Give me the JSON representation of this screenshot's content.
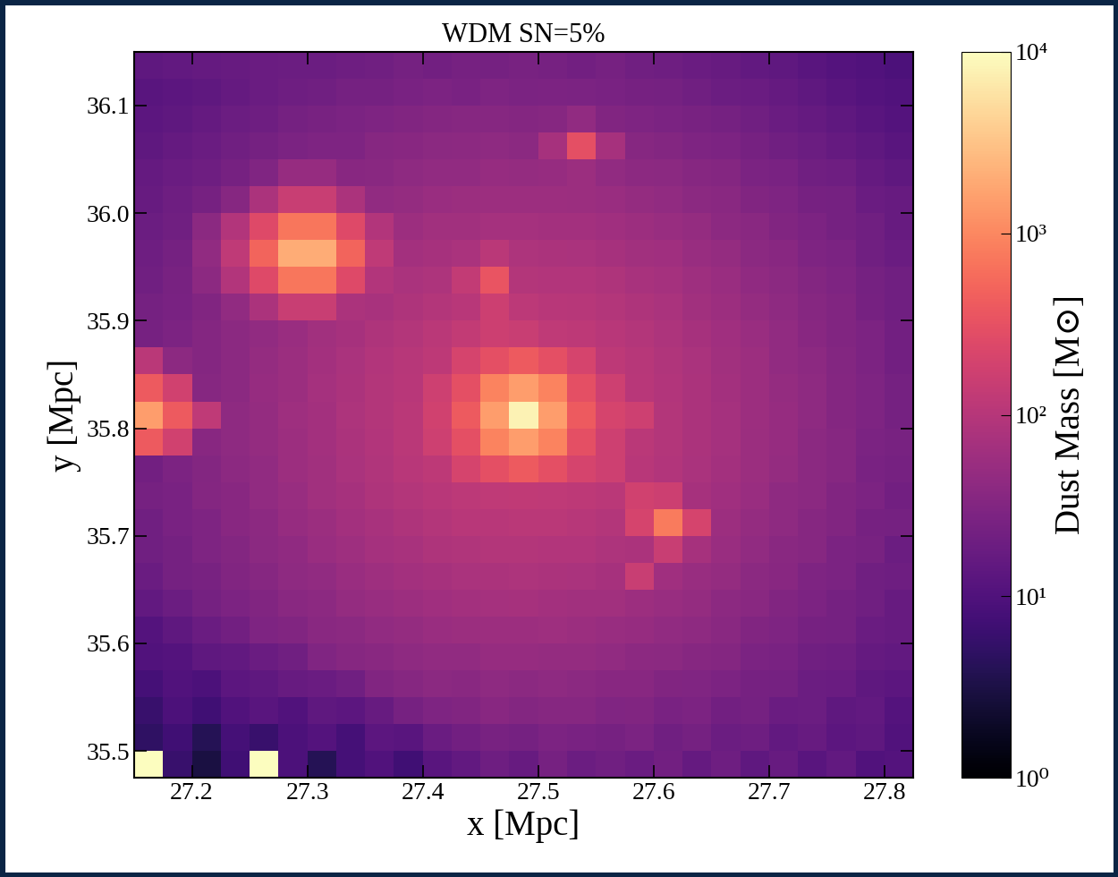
{
  "chart_data": {
    "type": "heatmap",
    "title": "WDM SN=5%",
    "x_label": "x [Mpc]",
    "y_label": "y [Mpc]",
    "xlim": [
      27.15,
      27.825
    ],
    "ylim": [
      35.475,
      36.15
    ],
    "xticks": [
      27.2,
      27.3,
      27.4,
      27.5,
      27.6,
      27.7,
      27.8
    ],
    "yticks": [
      35.5,
      35.6,
      35.7,
      35.8,
      35.9,
      36.0,
      36.1
    ],
    "x_edges": [
      27.15,
      27.175,
      27.2,
      27.225,
      27.25,
      27.275,
      27.3,
      27.325,
      27.35,
      27.375,
      27.4,
      27.425,
      27.45,
      27.475,
      27.5,
      27.525,
      27.55,
      27.575,
      27.6,
      27.625,
      27.65,
      27.675,
      27.7,
      27.725,
      27.75,
      27.775,
      27.8,
      27.825
    ],
    "y_edges": [
      35.475,
      35.5,
      35.525,
      35.55,
      35.575,
      35.6,
      35.625,
      35.65,
      35.675,
      35.7,
      35.725,
      35.75,
      35.775,
      35.8,
      35.825,
      35.85,
      35.875,
      35.9,
      35.925,
      35.95,
      35.975,
      36.0,
      36.025,
      36.05,
      36.075,
      36.1,
      36.125,
      36.15
    ],
    "cells": [
      [
        10000,
        6,
        3,
        7,
        10000,
        9,
        4,
        8,
        10,
        7,
        12,
        15,
        20,
        17,
        24,
        19,
        21,
        18,
        22,
        16,
        20,
        14,
        17,
        12,
        15,
        10,
        11
      ],
      [
        5,
        7,
        4,
        8,
        6,
        9,
        11,
        8,
        13,
        12,
        18,
        22,
        25,
        23,
        28,
        26,
        24,
        27,
        21,
        23,
        19,
        20,
        15,
        17,
        13,
        14,
        10
      ],
      [
        6,
        9,
        7,
        10,
        12,
        10,
        14,
        13,
        17,
        24,
        29,
        31,
        36,
        32,
        35,
        34,
        30,
        31,
        26,
        28,
        22,
        23,
        18,
        19,
        14,
        15,
        11
      ],
      [
        8,
        10,
        9,
        13,
        14,
        17,
        18,
        21,
        31,
        35,
        38,
        37,
        42,
        39,
        41,
        38,
        36,
        36,
        31,
        30,
        28,
        24,
        23,
        19,
        18,
        14,
        13
      ],
      [
        10,
        11,
        14,
        15,
        18,
        21,
        30,
        35,
        37,
        42,
        44,
        45,
        49,
        50,
        47,
        47,
        44,
        40,
        39,
        34,
        33,
        27,
        26,
        21,
        20,
        16,
        15
      ],
      [
        11,
        14,
        18,
        22,
        29,
        31,
        37,
        39,
        45,
        48,
        54,
        55,
        58,
        57,
        59,
        55,
        52,
        50,
        45,
        41,
        37,
        31,
        29,
        24,
        23,
        18,
        17
      ],
      [
        15,
        19,
        23,
        28,
        31,
        37,
        40,
        47,
        51,
        58,
        61,
        66,
        68,
        70,
        66,
        64,
        63,
        58,
        52,
        47,
        40,
        37,
        31,
        28,
        23,
        21,
        17
      ],
      [
        18,
        23,
        25,
        31,
        34,
        41,
        45,
        54,
        59,
        66,
        72,
        75,
        80,
        81,
        78,
        77,
        72,
        150,
        61,
        52,
        47,
        39,
        36,
        29,
        27,
        21,
        20
      ],
      [
        21,
        23,
        29,
        32,
        39,
        43,
        53,
        59,
        68,
        74,
        84,
        88,
        95,
        96,
        93,
        90,
        82,
        80,
        150,
        70,
        53,
        45,
        37,
        34,
        27,
        25,
        19
      ],
      [
        21,
        26,
        29,
        36,
        40,
        50,
        56,
        66,
        74,
        86,
        94,
        104,
        107,
        111,
        109,
        102,
        96,
        200,
        800,
        200,
        58,
        48,
        42,
        34,
        31,
        24,
        23
      ],
      [
        24,
        26,
        33,
        36,
        44,
        52,
        63,
        70,
        84,
        94,
        107,
        115,
        124,
        127,
        122,
        117,
        108,
        180,
        160,
        72,
        61,
        54,
        42,
        38,
        31,
        28,
        22
      ],
      [
        22,
        28,
        32,
        40,
        45,
        57,
        64,
        77,
        88,
        104,
        117,
        200,
        300,
        400,
        300,
        200,
        170,
        104,
        90,
        75,
        66,
        55,
        47,
        38,
        34,
        26,
        24
      ],
      [
        400,
        180,
        36,
        41,
        47,
        58,
        66,
        80,
        93,
        109,
        170,
        300,
        900,
        1500,
        900,
        300,
        170,
        110,
        95,
        78,
        68,
        56,
        49,
        39,
        35,
        27,
        25
      ],
      [
        1500,
        400,
        120,
        42,
        47,
        59,
        67,
        81,
        96,
        111,
        180,
        400,
        1500,
        8000,
        1500,
        400,
        200,
        170,
        96,
        79,
        69,
        57,
        49,
        41,
        33,
        29,
        23
      ],
      [
        400,
        180,
        35,
        39,
        49,
        56,
        68,
        78,
        95,
        107,
        170,
        300,
        900,
        1500,
        900,
        300,
        170,
        107,
        93,
        80,
        66,
        58,
        47,
        41,
        33,
        29,
        23
      ],
      [
        110,
        40,
        33,
        39,
        47,
        55,
        66,
        75,
        90,
        102,
        118,
        200,
        300,
        400,
        300,
        200,
        118,
        102,
        88,
        77,
        64,
        57,
        45,
        40,
        32,
        28,
        22
      ],
      [
        24,
        28,
        33,
        38,
        44,
        54,
        63,
        72,
        84,
        96,
        110,
        130,
        160,
        150,
        124,
        117,
        105,
        94,
        82,
        72,
        61,
        54,
        44,
        36,
        31,
        28,
        22
      ],
      [
        23,
        26,
        31,
        45,
        80,
        150,
        150,
        80,
        74,
        86,
        94,
        104,
        160,
        112,
        107,
        102,
        96,
        84,
        76,
        64,
        58,
        48,
        42,
        34,
        31,
        24,
        21
      ],
      [
        21,
        25,
        40,
        90,
        250,
        700,
        700,
        250,
        90,
        76,
        82,
        130,
        350,
        96,
        93,
        90,
        84,
        74,
        68,
        59,
        53,
        43,
        39,
        32,
        29,
        23,
        21
      ],
      [
        20,
        23,
        45,
        120,
        500,
        2000,
        2000,
        500,
        120,
        66,
        70,
        77,
        110,
        82,
        78,
        75,
        72,
        64,
        61,
        52,
        47,
        39,
        36,
        29,
        27,
        21,
        18
      ],
      [
        19,
        21,
        38,
        90,
        250,
        700,
        700,
        250,
        90,
        58,
        63,
        64,
        68,
        69,
        66,
        66,
        61,
        58,
        51,
        47,
        40,
        37,
        31,
        28,
        23,
        21,
        17
      ],
      [
        17,
        20,
        24,
        35,
        80,
        150,
        150,
        80,
        45,
        48,
        54,
        55,
        58,
        57,
        58,
        55,
        54,
        48,
        45,
        39,
        37,
        31,
        29,
        24,
        23,
        18,
        17
      ],
      [
        16,
        18,
        20,
        24,
        30,
        50,
        50,
        36,
        37,
        42,
        44,
        45,
        49,
        47,
        49,
        55,
        44,
        40,
        39,
        34,
        33,
        27,
        26,
        21,
        20,
        16,
        14
      ],
      [
        14,
        16,
        18,
        21,
        23,
        27,
        29,
        29,
        34,
        36,
        38,
        40,
        41,
        39,
        70,
        300,
        70,
        34,
        32,
        29,
        28,
        24,
        21,
        19,
        16,
        14,
        12
      ],
      [
        13,
        14,
        16,
        19,
        20,
        23,
        25,
        27,
        29,
        31,
        33,
        34,
        35,
        33,
        35,
        45,
        31,
        29,
        27,
        25,
        23,
        21,
        18,
        16,
        14,
        12,
        11
      ],
      [
        12,
        13,
        14,
        16,
        18,
        20,
        21,
        23,
        23,
        26,
        28,
        26,
        29,
        27,
        28,
        27,
        26,
        24,
        23,
        21,
        19,
        18,
        16,
        14,
        12,
        11,
        10
      ],
      [
        14,
        15,
        16,
        17,
        18,
        19,
        19,
        20,
        21,
        23,
        22,
        24,
        23,
        25,
        24,
        22,
        24,
        21,
        20,
        18,
        17,
        15,
        14,
        12,
        11,
        10,
        9
      ]
    ],
    "colorbar": {
      "label": "Dust Mass [M⊙]",
      "log": true,
      "lim": [
        1,
        10000
      ],
      "ticks": [
        {
          "value": 1,
          "label": "10⁰"
        },
        {
          "value": 10,
          "label": "10¹"
        },
        {
          "value": 100,
          "label": "10²"
        },
        {
          "value": 1000,
          "label": "10³"
        },
        {
          "value": 10000,
          "label": "10⁴"
        }
      ]
    }
  }
}
